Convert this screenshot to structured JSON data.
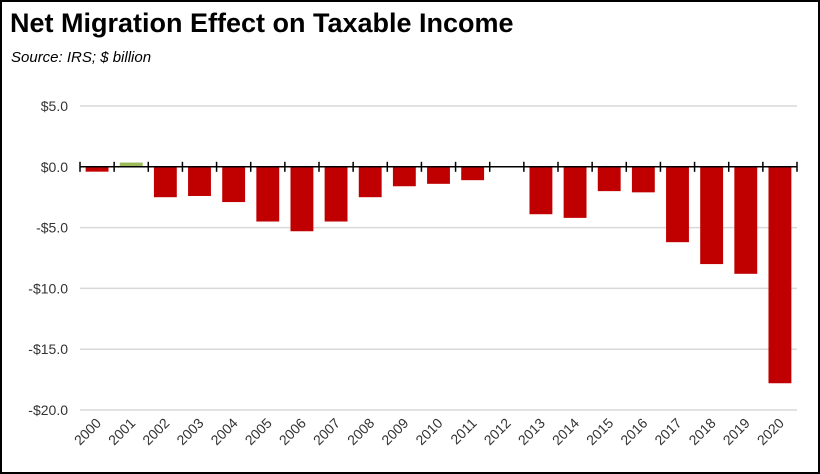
{
  "chart_data": {
    "type": "bar",
    "title": "Net Migration Effect on Taxable Income",
    "subtitle": "Source:  IRS; $ billion",
    "xlabel": "",
    "ylabel": "",
    "categories": [
      "2000",
      "2001",
      "2002",
      "2003",
      "2004",
      "2005",
      "2006",
      "2007",
      "2008",
      "2009",
      "2010",
      "2011",
      "2012",
      "2013",
      "2014",
      "2015",
      "2016",
      "2017",
      "2018",
      "2019",
      "2020"
    ],
    "values": [
      -0.4,
      0.35,
      -2.5,
      -2.4,
      -2.9,
      -4.5,
      -5.3,
      -4.5,
      -2.5,
      -1.6,
      -1.4,
      -1.1,
      0,
      -3.9,
      -4.2,
      -2.0,
      -2.1,
      -6.2,
      -8.0,
      -8.8,
      -17.8
    ],
    "ylim": [
      -20,
      5
    ],
    "yticks": [
      5,
      0,
      -5,
      -10,
      -15,
      -20
    ],
    "ytick_labels": [
      "$5.0",
      "$0.0",
      "-$5.0",
      "-$10.0",
      "-$15.0",
      "-$20.0"
    ],
    "grid": true,
    "colors": {
      "negative": "#C00000",
      "positive": "#9BBB59",
      "grid": "#D9D9D9",
      "axis": "#000000"
    }
  }
}
